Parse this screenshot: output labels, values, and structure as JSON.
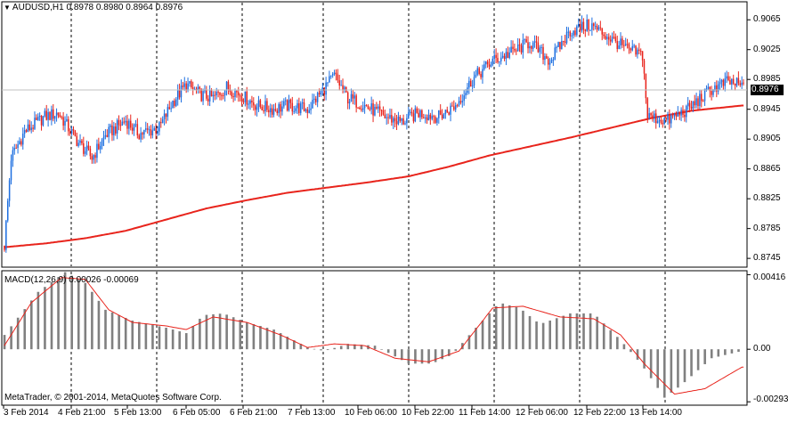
{
  "header": {
    "menu_icon": "triangle-down-icon",
    "symbol": "AUDUSD,H1",
    "ohlc": "0.8978 0.8980 0.8964 0.8976"
  },
  "current_price_label": "0.8976",
  "macd_header": "MACD(12,26,9) 0.00026 -0.00069",
  "copyright": "MetaTrader, © 2001-2014, MetaQuotes Software Corp.",
  "colors": {
    "bull": "#1e6fe0",
    "bear": "#e8241c",
    "ma": "#e8241c",
    "histogram": "#808080",
    "signal": "#e8241c",
    "grid": "#000000",
    "price_line": "#c0c0c0"
  },
  "chart_data": [
    {
      "type": "candlestick",
      "title": "AUDUSD,H1",
      "y_ticks": [
        "0.9065",
        "0.9025",
        "0.8985",
        "0.8945",
        "0.8905",
        "0.8865",
        "0.8825",
        "0.8785",
        "0.8745"
      ],
      "ylim": [
        0.8738,
        0.9082
      ],
      "current_price": 0.8976,
      "x_labels": [
        "3 Feb 2014",
        "4 Feb 21:00",
        "5 Feb 13:00",
        "6 Feb 05:00",
        "6 Feb 21:00",
        "7 Feb 13:00",
        "10 Feb 06:00",
        "10 Feb 22:00",
        "11 Feb 14:00",
        "12 Feb 06:00",
        "12 Feb 22:00",
        "13 Feb 14:00"
      ],
      "grid": "vertical dashed at time labels",
      "moving_average": [
        [
          0,
          0.876
        ],
        [
          24,
          0.8765
        ],
        [
          48,
          0.8772
        ],
        [
          72,
          0.8782
        ],
        [
          96,
          0.8797
        ],
        [
          120,
          0.8812
        ],
        [
          144,
          0.8823
        ],
        [
          168,
          0.8833
        ],
        [
          192,
          0.884
        ],
        [
          216,
          0.8847
        ],
        [
          240,
          0.8855
        ],
        [
          264,
          0.8868
        ],
        [
          288,
          0.8883
        ],
        [
          312,
          0.8895
        ],
        [
          336,
          0.8907
        ],
        [
          360,
          0.892
        ],
        [
          384,
          0.8933
        ],
        [
          408,
          0.8943
        ],
        [
          438,
          0.895
        ]
      ]
    },
    {
      "type": "macd",
      "name": "MACD(12,26,9)",
      "y_ticks": [
        "0.00416",
        "0.00",
        "-0.00293"
      ],
      "ylim": [
        -0.00302,
        0.00428
      ],
      "histogram_keypoints": [
        [
          0,
          0.0008
        ],
        [
          20,
          0.0032
        ],
        [
          36,
          0.0043
        ],
        [
          48,
          0.0037
        ],
        [
          60,
          0.0022
        ],
        [
          76,
          0.0016
        ],
        [
          96,
          0.0012
        ],
        [
          108,
          0.0009
        ],
        [
          118,
          0.0019
        ],
        [
          130,
          0.002
        ],
        [
          144,
          0.0015
        ],
        [
          160,
          0.0011
        ],
        [
          180,
          0.0001
        ],
        [
          190,
          -0.0001
        ],
        [
          204,
          0.0003
        ],
        [
          220,
          0.0002
        ],
        [
          240,
          -0.0008
        ],
        [
          254,
          -0.0008
        ],
        [
          266,
          -0.0003
        ],
        [
          278,
          0.001
        ],
        [
          294,
          0.0026
        ],
        [
          306,
          0.0023
        ],
        [
          318,
          0.0014
        ],
        [
          336,
          0.002
        ],
        [
          350,
          0.002
        ],
        [
          366,
          0.0005
        ],
        [
          378,
          -0.0008
        ],
        [
          392,
          -0.0027
        ],
        [
          402,
          -0.002
        ],
        [
          420,
          -0.0005
        ],
        [
          438,
          -0.0001
        ]
      ],
      "signal_keypoints": [
        [
          0,
          0.0002
        ],
        [
          16,
          0.0026
        ],
        [
          34,
          0.004
        ],
        [
          48,
          0.0039
        ],
        [
          62,
          0.0022
        ],
        [
          76,
          0.0015
        ],
        [
          96,
          0.0013
        ],
        [
          108,
          0.0011
        ],
        [
          124,
          0.0018
        ],
        [
          144,
          0.0015
        ],
        [
          164,
          0.0008
        ],
        [
          180,
          0.0001
        ],
        [
          196,
          0.0003
        ],
        [
          214,
          0.0002
        ],
        [
          232,
          -0.0005
        ],
        [
          252,
          -0.0007
        ],
        [
          270,
          -0.0001
        ],
        [
          290,
          0.0023
        ],
        [
          308,
          0.0024
        ],
        [
          330,
          0.0018
        ],
        [
          350,
          0.0017
        ],
        [
          366,
          0.0008
        ],
        [
          380,
          -0.0008
        ],
        [
          398,
          -0.0025
        ],
        [
          416,
          -0.0022
        ],
        [
          438,
          -0.001
        ]
      ]
    }
  ],
  "candle_keypoints": [
    [
      0,
      0.8762
    ],
    [
      4,
      0.888
    ],
    [
      12,
      0.8915
    ],
    [
      24,
      0.8935
    ],
    [
      32,
      0.894
    ],
    [
      44,
      0.89
    ],
    [
      52,
      0.888
    ],
    [
      60,
      0.891
    ],
    [
      72,
      0.893
    ],
    [
      80,
      0.8912
    ],
    [
      92,
      0.892
    ],
    [
      100,
      0.8955
    ],
    [
      108,
      0.8978
    ],
    [
      116,
      0.8965
    ],
    [
      124,
      0.896
    ],
    [
      132,
      0.8975
    ],
    [
      140,
      0.8965
    ],
    [
      150,
      0.895
    ],
    [
      160,
      0.8945
    ],
    [
      168,
      0.895
    ],
    [
      180,
      0.8945
    ],
    [
      196,
      0.899
    ],
    [
      204,
      0.896
    ],
    [
      214,
      0.895
    ],
    [
      226,
      0.8935
    ],
    [
      236,
      0.8928
    ],
    [
      246,
      0.894
    ],
    [
      258,
      0.8935
    ],
    [
      268,
      0.895
    ],
    [
      278,
      0.8985
    ],
    [
      290,
      0.901
    ],
    [
      302,
      0.9022
    ],
    [
      312,
      0.9035
    ],
    [
      324,
      0.901
    ],
    [
      336,
      0.905
    ],
    [
      348,
      0.9058
    ],
    [
      360,
      0.904
    ],
    [
      370,
      0.9025
    ],
    [
      379,
      0.9018
    ],
    [
      382,
      0.8935
    ],
    [
      394,
      0.893
    ],
    [
      406,
      0.8945
    ],
    [
      420,
      0.8972
    ],
    [
      430,
      0.8982
    ],
    [
      438,
      0.8976
    ]
  ]
}
